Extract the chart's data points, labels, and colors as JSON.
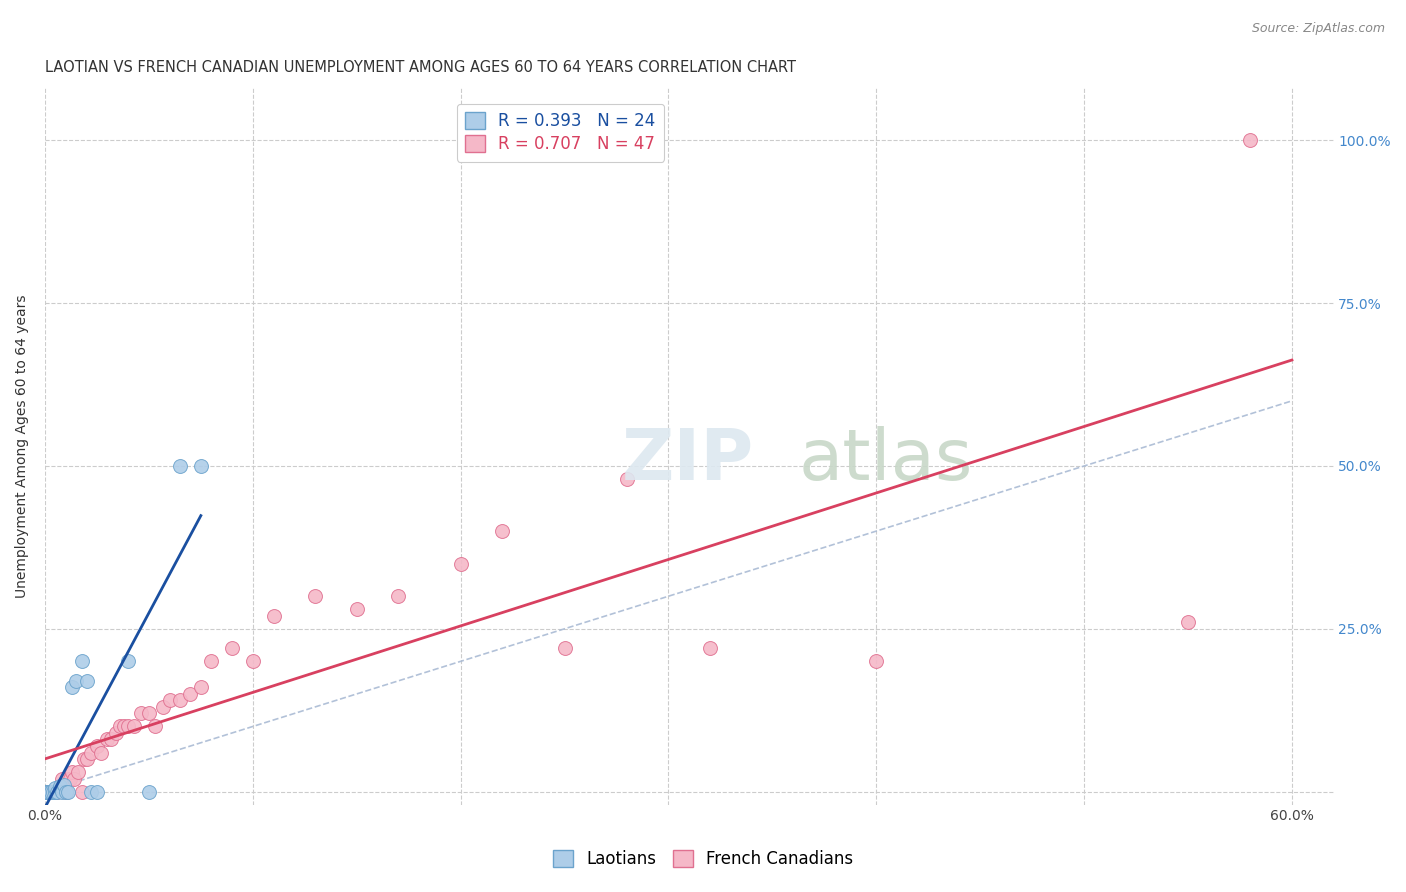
{
  "title": "LAOTIAN VS FRENCH CANADIAN UNEMPLOYMENT AMONG AGES 60 TO 64 YEARS CORRELATION CHART",
  "source": "Source: ZipAtlas.com",
  "ylabel": "Unemployment Among Ages 60 to 64 years",
  "xlim": [
    0.0,
    0.62
  ],
  "ylim": [
    -0.02,
    1.08
  ],
  "x_ticks": [
    0.0,
    0.1,
    0.2,
    0.3,
    0.4,
    0.5,
    0.6
  ],
  "y_ticks": [
    0.0,
    0.25,
    0.5,
    0.75,
    1.0
  ],
  "laotian_R": 0.393,
  "laotian_N": 24,
  "french_canadian_R": 0.707,
  "french_canadian_N": 47,
  "laotian_color": "#aecde8",
  "laotian_edge_color": "#6ba3cc",
  "french_canadian_color": "#f5b8c8",
  "french_canadian_edge_color": "#e07090",
  "laotian_line_color": "#1a4fa0",
  "french_canadian_line_color": "#d84060",
  "diagonal_color": "#aabbd4",
  "background_color": "#ffffff",
  "grid_color": "#cccccc",
  "right_tick_color": "#4488cc",
  "laotian_x": [
    0.0,
    0.001,
    0.002,
    0.003,
    0.004,
    0.005,
    0.005,
    0.006,
    0.007,
    0.007,
    0.008,
    0.009,
    0.01,
    0.011,
    0.013,
    0.015,
    0.018,
    0.02,
    0.022,
    0.025,
    0.04,
    0.05,
    0.065,
    0.075
  ],
  "laotian_y": [
    0.0,
    0.0,
    0.0,
    0.0,
    0.0,
    0.0,
    0.005,
    0.0,
    0.005,
    0.008,
    0.0,
    0.01,
    0.0,
    0.0,
    0.16,
    0.17,
    0.2,
    0.17,
    0.0,
    0.0,
    0.2,
    0.0,
    0.5,
    0.5
  ],
  "french_canadian_x": [
    0.0,
    0.0,
    0.003,
    0.006,
    0.008,
    0.01,
    0.011,
    0.012,
    0.013,
    0.014,
    0.016,
    0.018,
    0.019,
    0.02,
    0.022,
    0.025,
    0.027,
    0.03,
    0.032,
    0.034,
    0.036,
    0.038,
    0.04,
    0.043,
    0.046,
    0.05,
    0.053,
    0.057,
    0.06,
    0.065,
    0.07,
    0.075,
    0.08,
    0.09,
    0.1,
    0.11,
    0.13,
    0.15,
    0.17,
    0.2,
    0.22,
    0.25,
    0.28,
    0.32,
    0.4,
    0.55,
    0.58
  ],
  "french_canadian_y": [
    0.0,
    0.0,
    0.0,
    0.0,
    0.02,
    0.0,
    0.02,
    0.02,
    0.03,
    0.02,
    0.03,
    0.0,
    0.05,
    0.05,
    0.06,
    0.07,
    0.06,
    0.08,
    0.08,
    0.09,
    0.1,
    0.1,
    0.1,
    0.1,
    0.12,
    0.12,
    0.1,
    0.13,
    0.14,
    0.14,
    0.15,
    0.16,
    0.2,
    0.22,
    0.2,
    0.27,
    0.3,
    0.28,
    0.3,
    0.35,
    0.4,
    0.22,
    0.48,
    0.22,
    0.2,
    0.26,
    1.0
  ],
  "marker_size": 100,
  "title_fontsize": 10.5,
  "axis_label_fontsize": 10,
  "tick_fontsize": 10,
  "legend_fontsize": 12
}
